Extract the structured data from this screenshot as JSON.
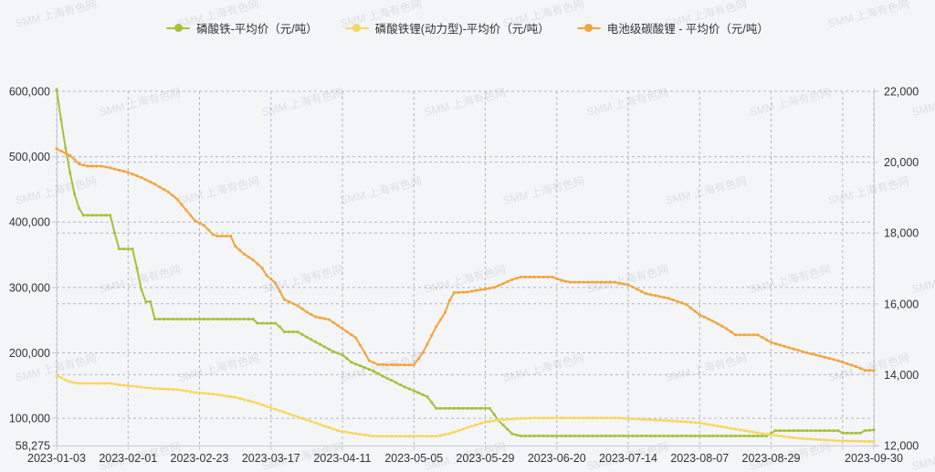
{
  "watermark": "SMM 上海有色网",
  "watermark_color": "#c9cdd6",
  "background_color": "#f4f5f7",
  "grid_color": "#8b94ae",
  "axis_line_color": "#c9ccd3",
  "axis_label_color": "#333333",
  "chart_data": {
    "type": "line",
    "title": "",
    "legend_position": "top-center",
    "x_axis": {
      "labels": [
        "2023-01-03",
        "2023-02-01",
        "2023-02-23",
        "2023-03-17",
        "2023-04-11",
        "2023-05-05",
        "2023-05-29",
        "2023-06-20",
        "2023-07-14",
        "2023-08-07",
        "2023-08-29",
        "2023-09-30"
      ],
      "label_indices": [
        0,
        16,
        32,
        48,
        64,
        80,
        96,
        112,
        128,
        144,
        160,
        183
      ],
      "extra_gridline_indices": [
        176
      ],
      "total_points": 184
    },
    "y_axis_left": {
      "min": 58275,
      "max": 600000,
      "ticks": [
        {
          "label": "600,000",
          "v": 600000
        },
        {
          "label": "500,000",
          "v": 500000
        },
        {
          "label": "400,000",
          "v": 400000
        },
        {
          "label": "300,000",
          "v": 300000
        },
        {
          "label": "200,000",
          "v": 200000
        },
        {
          "label": "100,000",
          "v": 100000
        },
        {
          "label": "58,275",
          "v": 58275
        }
      ]
    },
    "y_axis_right": {
      "min": 12000,
      "max": 22000,
      "ticks": [
        {
          "label": "22,000",
          "v": 22000
        },
        {
          "label": "20,000",
          "v": 20000
        },
        {
          "label": "18,000",
          "v": 18000
        },
        {
          "label": "16,000",
          "v": 16000
        },
        {
          "label": "14,000",
          "v": 14000
        },
        {
          "label": "12,000",
          "v": 12000
        }
      ]
    },
    "series": [
      {
        "name": "磷酸铁-平均价（元/吨）",
        "slug": "iron-phosphate",
        "color": "#a5c13a",
        "axis": "right",
        "keypoints": [
          [
            0,
            22050
          ],
          [
            1,
            21200
          ],
          [
            2,
            20400
          ],
          [
            3,
            19700
          ],
          [
            4,
            19100
          ],
          [
            5,
            18700
          ],
          [
            6,
            18500
          ],
          [
            12,
            18500
          ],
          [
            13,
            18000
          ],
          [
            14,
            17550
          ],
          [
            17,
            17550
          ],
          [
            18,
            17000
          ],
          [
            19,
            16400
          ],
          [
            20,
            16060
          ],
          [
            21,
            16060
          ],
          [
            22,
            15570
          ],
          [
            44,
            15570
          ],
          [
            45,
            15450
          ],
          [
            49,
            15450
          ],
          [
            50,
            15350
          ],
          [
            51,
            15210
          ],
          [
            54,
            15210
          ],
          [
            56,
            15060
          ],
          [
            62,
            14650
          ],
          [
            64,
            14560
          ],
          [
            66,
            14350
          ],
          [
            71,
            14100
          ],
          [
            73,
            13960
          ],
          [
            75,
            13840
          ],
          [
            78,
            13650
          ],
          [
            81,
            13490
          ],
          [
            83,
            13380
          ],
          [
            85,
            13050
          ],
          [
            97,
            13050
          ],
          [
            99,
            12700
          ],
          [
            102,
            12330
          ],
          [
            104,
            12270
          ],
          [
            159,
            12270
          ],
          [
            161,
            12420
          ],
          [
            175,
            12420
          ],
          [
            176,
            12350
          ],
          [
            180,
            12350
          ],
          [
            181,
            12420
          ],
          [
            183,
            12440
          ]
        ]
      },
      {
        "name": "磷酸铁锂(动力型)-平均价（元/吨）",
        "slug": "lfp-power-type",
        "color": "#f6d75f",
        "axis": "left",
        "keypoints": [
          [
            0,
            165500
          ],
          [
            1,
            162000
          ],
          [
            2,
            158500
          ],
          [
            3,
            156000
          ],
          [
            4,
            154200
          ],
          [
            5,
            153400
          ],
          [
            12,
            153400
          ],
          [
            14,
            151000
          ],
          [
            17,
            149000
          ],
          [
            22,
            145300
          ],
          [
            27,
            143900
          ],
          [
            31,
            139300
          ],
          [
            35,
            137000
          ],
          [
            40,
            132000
          ],
          [
            44,
            125000
          ],
          [
            46,
            120700
          ],
          [
            48,
            116000
          ],
          [
            50,
            111400
          ],
          [
            53,
            104400
          ],
          [
            56,
            97400
          ],
          [
            59,
            90400
          ],
          [
            63,
            81100
          ],
          [
            67,
            76400
          ],
          [
            71,
            72500
          ],
          [
            85,
            72500
          ],
          [
            88,
            76400
          ],
          [
            92,
            85800
          ],
          [
            96,
            94100
          ],
          [
            99,
            97400
          ],
          [
            103,
            99500
          ],
          [
            107,
            100400
          ],
          [
            126,
            100400
          ],
          [
            128,
            99500
          ],
          [
            141,
            94600
          ],
          [
            144,
            92700
          ],
          [
            152,
            83400
          ],
          [
            158,
            76400
          ],
          [
            166,
            69400
          ],
          [
            175,
            65500
          ],
          [
            183,
            64500
          ]
        ]
      },
      {
        "name": "电池级碳酸锂 - 平均价（元/吨）",
        "slug": "battery-grade-lithium-carbonate",
        "color": "#f3a43d",
        "axis": "left",
        "keypoints": [
          [
            0,
            512000
          ],
          [
            3,
            502000
          ],
          [
            5,
            489000
          ],
          [
            7,
            485500
          ],
          [
            10,
            485500
          ],
          [
            12,
            483000
          ],
          [
            16,
            476000
          ],
          [
            19,
            468000
          ],
          [
            22,
            458000
          ],
          [
            25,
            446000
          ],
          [
            27,
            435000
          ],
          [
            31,
            402000
          ],
          [
            33,
            395000
          ],
          [
            35,
            381000
          ],
          [
            36,
            378500
          ],
          [
            39,
            378500
          ],
          [
            40,
            363000
          ],
          [
            42,
            351000
          ],
          [
            44,
            342000
          ],
          [
            46,
            330000
          ],
          [
            47,
            318500
          ],
          [
            49,
            307000
          ],
          [
            51,
            281500
          ],
          [
            54,
            272000
          ],
          [
            56,
            262500
          ],
          [
            58,
            255000
          ],
          [
            61,
            251000
          ],
          [
            64,
            237000
          ],
          [
            67,
            223000
          ],
          [
            69,
            200000
          ],
          [
            70,
            188000
          ],
          [
            72,
            182000
          ],
          [
            80,
            181500
          ],
          [
            82,
            200000
          ],
          [
            85,
            240000
          ],
          [
            87,
            262000
          ],
          [
            88,
            280000
          ],
          [
            89,
            292000
          ],
          [
            92,
            293000
          ],
          [
            94,
            295500
          ],
          [
            98,
            300000
          ],
          [
            102,
            312000
          ],
          [
            104,
            316000
          ],
          [
            111,
            316000
          ],
          [
            113,
            311000
          ],
          [
            115,
            308000
          ],
          [
            125,
            308000
          ],
          [
            128,
            304000
          ],
          [
            132,
            290500
          ],
          [
            137,
            283500
          ],
          [
            141,
            274000
          ],
          [
            144,
            258000
          ],
          [
            147,
            248500
          ],
          [
            150,
            237000
          ],
          [
            152,
            227500
          ],
          [
            157,
            227500
          ],
          [
            160,
            216000
          ],
          [
            167,
            202000
          ],
          [
            175,
            188000
          ],
          [
            179,
            179000
          ],
          [
            181,
            173500
          ],
          [
            183,
            173000
          ]
        ]
      }
    ]
  }
}
